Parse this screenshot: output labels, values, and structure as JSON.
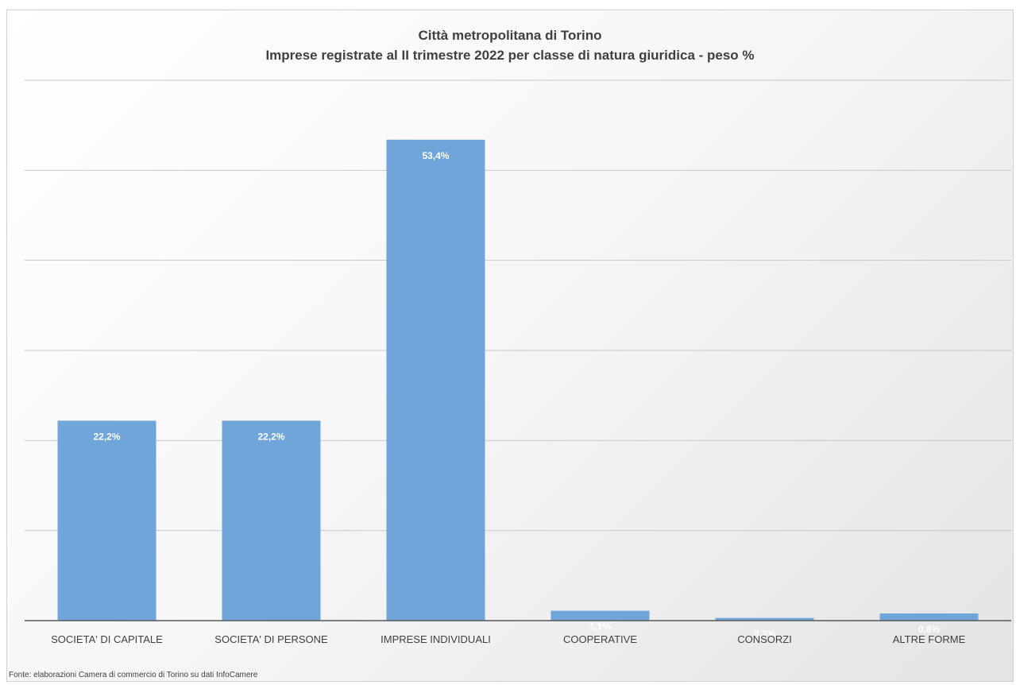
{
  "chart_data": {
    "type": "bar",
    "title": "Città metropolitana di Torino",
    "subtitle": "Imprese registrate al II trimestre 2022  per classe di natura giuridica - peso %",
    "categories": [
      "SOCIETA' DI CAPITALE",
      "SOCIETA' DI PERSONE",
      "IMPRESE INDIVIDUALI",
      "COOPERATIVE",
      "CONSORZI",
      "ALTRE FORME"
    ],
    "values": [
      22.2,
      22.2,
      53.4,
      1.1,
      0.3,
      0.8
    ],
    "data_labels": [
      "22,2%",
      "22,2%",
      "53,4%",
      "1,1%",
      "0,3%",
      "0,8%"
    ],
    "xlabel": "",
    "ylabel": "",
    "ylim": [
      0,
      60
    ],
    "grid": true,
    "bar_color": "#6fa5d8",
    "label_color": "#ffffff"
  },
  "source_note": "Fonte: elaborazioni Camera di commercio di Torino su dati InfoCamere"
}
